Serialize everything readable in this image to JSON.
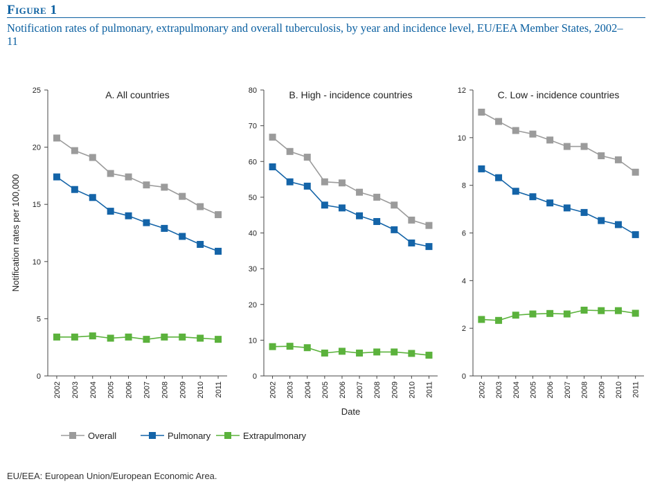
{
  "figure": {
    "label": "Figure 1",
    "title": "Notification rates of pulmonary, extrapulmonary and overall tuberculosis, by year and incidence level, EU/EEA Member States, 2002–11",
    "footnote": "EU/EEA: European Union/European Economic Area."
  },
  "colors": {
    "overall": "#9b9b9b",
    "pulmonary": "#1464a8",
    "extrapulmonary": "#5bb23c",
    "heading": "#0a5fa0"
  },
  "legend": [
    "Overall",
    "Pulmonary",
    "Extrapulmonary"
  ],
  "chart_data": [
    {
      "type": "line",
      "title": "A. All countries",
      "ylabel": "Notification rates per 100,000",
      "xlabel": "",
      "ylim": [
        0,
        25
      ],
      "yticks": [
        0,
        5,
        10,
        15,
        20,
        25
      ],
      "x": [
        "2002",
        "2003",
        "2004",
        "2005",
        "2006",
        "2007",
        "2008",
        "2009",
        "2010",
        "2011"
      ],
      "series": [
        {
          "name": "Overall",
          "values": [
            20.8,
            19.7,
            19.1,
            17.7,
            17.4,
            16.7,
            16.5,
            15.7,
            14.8,
            14.1
          ]
        },
        {
          "name": "Pulmonary",
          "values": [
            17.4,
            16.3,
            15.6,
            14.4,
            14.0,
            13.4,
            12.9,
            12.2,
            11.5,
            10.9
          ]
        },
        {
          "name": "Extrapulmonary",
          "values": [
            3.4,
            3.4,
            3.5,
            3.3,
            3.4,
            3.2,
            3.4,
            3.4,
            3.3,
            3.2
          ]
        }
      ]
    },
    {
      "type": "line",
      "title": "B. High - incidence countries",
      "ylabel": "",
      "xlabel": "Date",
      "ylim": [
        0,
        80
      ],
      "yticks": [
        0,
        10,
        20,
        30,
        40,
        50,
        60,
        70,
        80
      ],
      "x": [
        "2002",
        "2003",
        "2004",
        "2005",
        "2006",
        "2007",
        "2008",
        "2009",
        "2010",
        "2011"
      ],
      "series": [
        {
          "name": "Overall",
          "values": [
            66.8,
            62.8,
            61.2,
            54.3,
            54.0,
            51.4,
            50.0,
            47.8,
            43.6,
            42.1
          ]
        },
        {
          "name": "Pulmonary",
          "values": [
            58.5,
            54.3,
            53.1,
            47.8,
            47.0,
            44.8,
            43.2,
            40.9,
            37.2,
            36.2
          ]
        },
        {
          "name": "Extrapulmonary",
          "values": [
            8.2,
            8.3,
            7.9,
            6.4,
            6.9,
            6.4,
            6.7,
            6.7,
            6.3,
            5.8
          ]
        }
      ]
    },
    {
      "type": "line",
      "title": "C. Low - incidence countries",
      "ylabel": "",
      "xlabel": "",
      "ylim": [
        0,
        12
      ],
      "yticks": [
        0,
        2,
        4,
        6,
        8,
        10,
        12
      ],
      "x": [
        "2002",
        "2003",
        "2004",
        "2005",
        "2006",
        "2007",
        "2008",
        "2009",
        "2010",
        "2011"
      ],
      "series": [
        {
          "name": "Overall",
          "values": [
            11.07,
            10.68,
            10.3,
            10.15,
            9.9,
            9.63,
            9.63,
            9.24,
            9.07,
            8.55
          ]
        },
        {
          "name": "Pulmonary",
          "values": [
            8.69,
            8.32,
            7.75,
            7.52,
            7.26,
            7.05,
            6.86,
            6.52,
            6.35,
            5.93
          ]
        },
        {
          "name": "Extrapulmonary",
          "values": [
            2.37,
            2.33,
            2.55,
            2.6,
            2.62,
            2.6,
            2.76,
            2.74,
            2.74,
            2.63
          ]
        }
      ]
    }
  ]
}
